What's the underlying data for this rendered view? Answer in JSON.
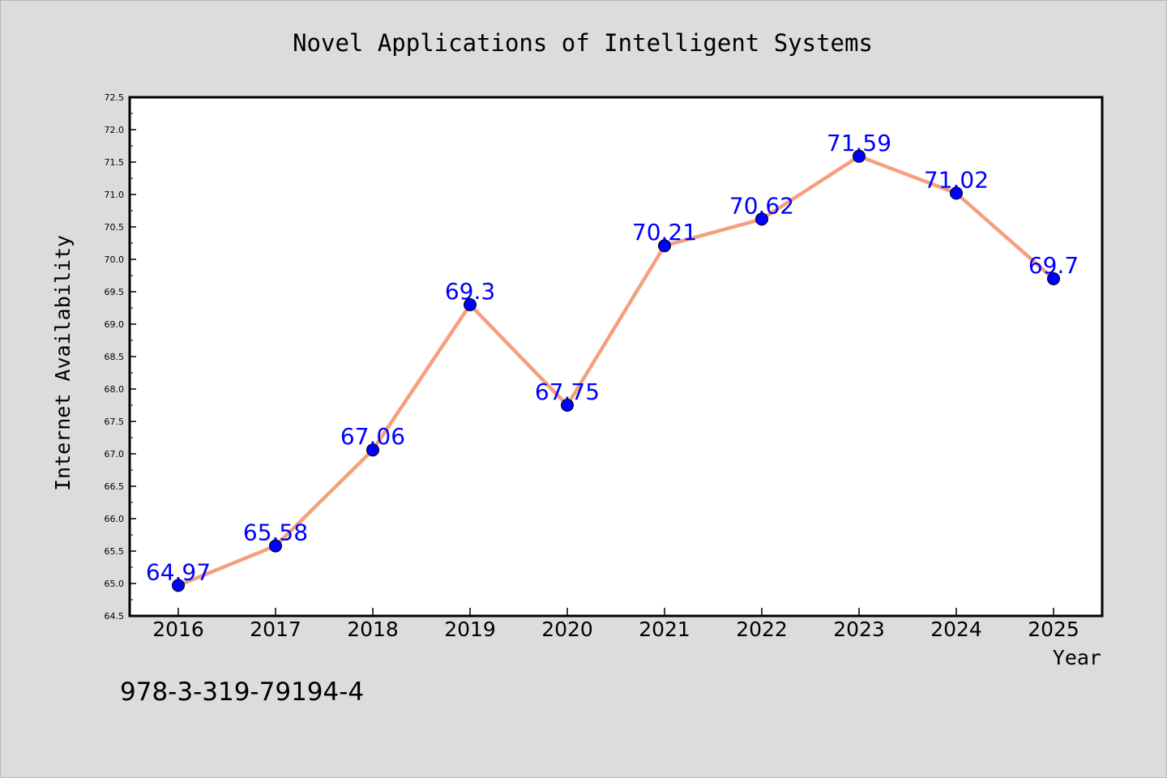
{
  "chart_data": {
    "type": "line",
    "title": "Novel Applications of Intelligent Systems",
    "xlabel": "Year",
    "ylabel": "Internet Availability",
    "categories": [
      "2016",
      "2017",
      "2018",
      "2019",
      "2020",
      "2021",
      "2022",
      "2023",
      "2024",
      "2025"
    ],
    "values": [
      64.97,
      65.58,
      67.06,
      69.3,
      67.75,
      70.21,
      70.62,
      71.59,
      71.02,
      69.7
    ],
    "data_labels": [
      "64.97",
      "65.58",
      "67.06",
      "69.3",
      "67.75",
      "70.21",
      "70.62",
      "71.59",
      "71.02",
      "69.7"
    ],
    "ylim": [
      64.5,
      72.5
    ],
    "yticks": [
      "64.5",
      "65.0",
      "65.5",
      "66.0",
      "66.5",
      "67.0",
      "67.5",
      "68.0",
      "68.5",
      "69.0",
      "69.5",
      "70.0",
      "70.5",
      "71.0",
      "71.5",
      "72.0",
      "72.5"
    ],
    "grid": false,
    "legend": "none",
    "colors": {
      "background": "#dcdcdc",
      "plot_background": "#ffffff",
      "line": "#f4a07e",
      "marker": "#0000ff",
      "data_label": "#0000ff",
      "text": "#000000"
    }
  },
  "footer_text": "978-3-319-79194-4"
}
